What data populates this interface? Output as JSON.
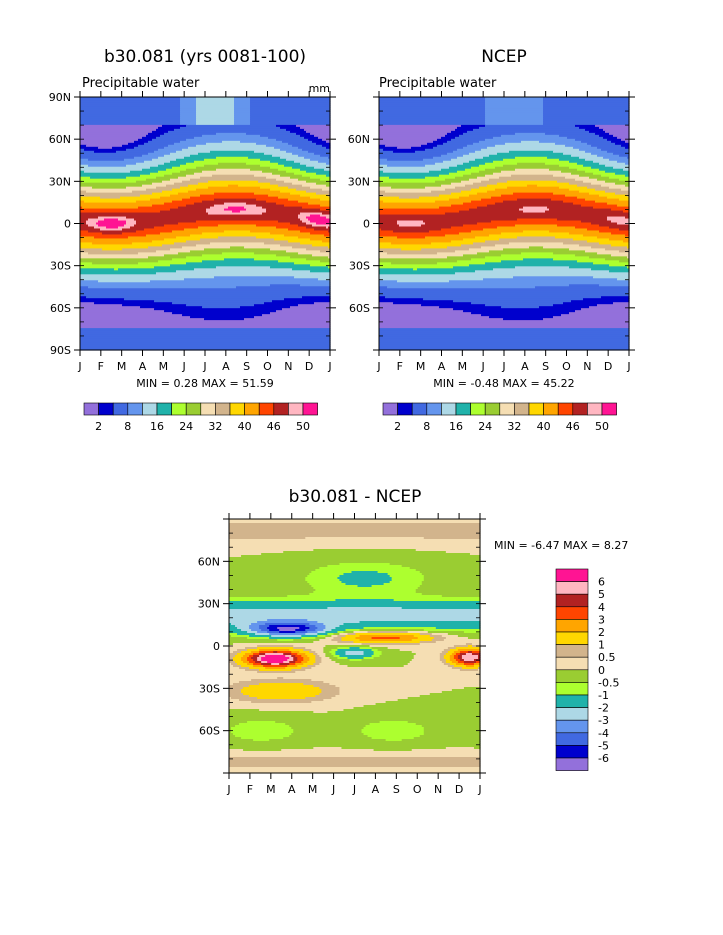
{
  "months": [
    "J",
    "F",
    "M",
    "A",
    "M",
    "J",
    "J",
    "A",
    "S",
    "O",
    "N",
    "D",
    "J"
  ],
  "chart_data": [
    {
      "type": "heatmap",
      "title": "b30.081 (yrs 0081-100)",
      "subtitle": "Precipitable water",
      "units": "mm",
      "yticks": [
        "90N",
        "60N",
        "30N",
        "0",
        "30S",
        "60S",
        "90S"
      ],
      "ylim": [
        -90,
        90
      ],
      "stats": "MIN =     0.28 MAX =   51.59",
      "peak": {
        "amp": 10,
        "shape": [
          0.6,
          0.4,
          0.6
        ],
        "width": 10
      },
      "polar": {
        "north": 1.2,
        "south": 1.2
      }
    },
    {
      "type": "heatmap",
      "title": "NCEP",
      "subtitle": "Precipitable water",
      "units": "",
      "yticks": [
        "",
        "60N",
        "30N",
        "0",
        "30S",
        "60S",
        ""
      ],
      "ylim": [
        -90,
        90
      ],
      "stats": "MIN =   -0.48 MAX =   45.22",
      "peak": {
        "amp": 5,
        "shape": [
          0.6,
          0.4,
          0.6
        ],
        "width": 12
      },
      "polar": {
        "north": 0.8,
        "south": 1.0
      }
    },
    {
      "type": "heatmap",
      "title": "b30.081 - NCEP",
      "yticks": [
        "",
        "60N",
        "30N",
        "0",
        "30S",
        "60S",
        ""
      ],
      "ylim": [
        -90,
        90
      ],
      "stats": "MIN =   -6.47 MAX =    8.27"
    }
  ],
  "colorbar_top": {
    "colors": [
      "#9370db",
      "#0000cd",
      "#4169e1",
      "#6495ed",
      "#add8e6",
      "#20b2aa",
      "#adff2f",
      "#9acd32",
      "#f5deb3",
      "#d2b48c",
      "#ffd700",
      "#ffa500",
      "#ff4500",
      "#b22222",
      "#ffb6c1",
      "#ff1493"
    ],
    "labels": [
      "2",
      "8",
      "16",
      "24",
      "32",
      "40",
      "46",
      "50"
    ],
    "thresholds": [
      1,
      2,
      5,
      8,
      12,
      16,
      20,
      24,
      28,
      32,
      36,
      40,
      43,
      46,
      48,
      50
    ]
  },
  "colorbar_diff": {
    "colors": [
      "#ff1493",
      "#ffb6c1",
      "#b22222",
      "#ff4500",
      "#ffa500",
      "#ffd700",
      "#d2b48c",
      "#f5deb3",
      "#9acd32",
      "#adff2f",
      "#20b2aa",
      "#add8e6",
      "#6495ed",
      "#4169e1",
      "#0000cd",
      "#9370db"
    ],
    "labels": [
      "6",
      "5",
      "4",
      "3",
      "2",
      "1",
      "0.5",
      "0",
      "-0.5",
      "-1",
      "-2",
      "-3",
      "-4",
      "-5",
      "-6"
    ],
    "thresholds": [
      -6,
      -5,
      -4,
      -3,
      -2,
      -1,
      -0.5,
      0,
      0.5,
      1,
      2,
      3,
      4,
      5,
      6
    ]
  }
}
